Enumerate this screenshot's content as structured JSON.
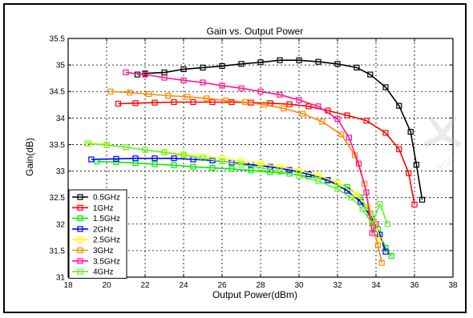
{
  "chart_data": {
    "type": "line",
    "title": "Gain vs. Output Power",
    "xlabel": "Output Power(dBm)",
    "ylabel": "Gain(dB)",
    "xlim": [
      18,
      38
    ],
    "ylim": [
      31,
      35.5
    ],
    "xticks": [
      "18",
      "20",
      "22",
      "24",
      "26",
      "28",
      "30",
      "32",
      "34",
      "36",
      "38"
    ],
    "yticks": [
      "31",
      "31.5",
      "32",
      "32.5",
      "33",
      "33.5",
      "34",
      "34.5",
      "35",
      "35.5"
    ],
    "grid": true,
    "grid_style": "dotted",
    "marker": "square",
    "legend_position": "lower-left",
    "series": [
      {
        "name": "0.5GHz",
        "color": "#000000",
        "x": [
          21.6,
          22.0,
          23.0,
          24.0,
          25.0,
          26.0,
          27.0,
          28.0,
          29.0,
          30.0,
          31.0,
          32.0,
          33.0,
          33.7,
          34.5,
          35.2,
          35.8,
          36.1,
          36.4
        ],
        "y": [
          34.82,
          34.84,
          34.86,
          34.92,
          34.95,
          34.98,
          35.02,
          35.05,
          35.09,
          35.09,
          35.06,
          35.02,
          34.95,
          34.82,
          34.58,
          34.23,
          33.74,
          33.12,
          32.46
        ]
      },
      {
        "name": "1GHz",
        "color": "#ff0000",
        "x": [
          20.6,
          21.5,
          22.5,
          23.5,
          24.5,
          25.5,
          26.5,
          27.5,
          28.5,
          29.5,
          30.5,
          31.5,
          32.5,
          33.5,
          34.5,
          35.2,
          35.7,
          36.0
        ],
        "y": [
          34.27,
          34.28,
          34.29,
          34.3,
          34.3,
          34.3,
          34.3,
          34.29,
          34.28,
          34.26,
          34.22,
          34.14,
          34.05,
          33.95,
          33.72,
          33.41,
          32.96,
          32.37
        ]
      },
      {
        "name": "1.5GHz",
        "color": "#00ee00",
        "x": [
          19.5,
          20.5,
          21.5,
          22.5,
          23.5,
          24.5,
          25.5,
          26.5,
          27.5,
          28.5,
          29.5,
          30.5,
          31.5,
          32.5,
          33.2,
          33.7,
          34.1,
          34.5,
          34.8
        ],
        "y": [
          33.18,
          33.17,
          33.15,
          33.13,
          33.11,
          33.08,
          33.06,
          33.04,
          33.01,
          32.98,
          32.95,
          32.9,
          32.82,
          32.7,
          32.5,
          32.2,
          31.9,
          31.55,
          31.4
        ]
      },
      {
        "name": "2GHz",
        "color": "#0000ff",
        "x": [
          19.2,
          20.5,
          21.5,
          22.5,
          23.5,
          24.5,
          25.5,
          26.5,
          27.5,
          28.5,
          29.5,
          30.5,
          31.5,
          32.5,
          33.2,
          33.8,
          34.2,
          34.5
        ],
        "y": [
          33.22,
          33.23,
          33.24,
          33.24,
          33.24,
          33.22,
          33.2,
          33.16,
          33.12,
          33.08,
          33.02,
          32.94,
          32.83,
          32.63,
          32.42,
          32.1,
          31.8,
          31.48
        ]
      },
      {
        "name": "2.5GHz",
        "color": "#ffff00",
        "x": [
          19.1,
          20.0,
          21.0,
          22.0,
          23.0,
          24.0,
          25.0,
          26.0,
          27.0,
          28.0,
          29.0,
          30.0,
          31.0,
          32.0,
          33.0,
          33.6,
          34.0,
          34.2
        ],
        "y": [
          33.52,
          33.5,
          33.45,
          33.4,
          33.36,
          33.32,
          33.28,
          33.24,
          33.19,
          33.14,
          33.08,
          33.01,
          32.92,
          32.78,
          32.56,
          32.32,
          32.0,
          31.7
        ]
      },
      {
        "name": "3GHz",
        "color": "#ff8800",
        "x": [
          20.2,
          21.2,
          22.2,
          23.2,
          24.2,
          25.2,
          26.2,
          27.2,
          28.2,
          29.2,
          30.2,
          31.2,
          32.2,
          32.9,
          33.4,
          33.8,
          34.1,
          34.3
        ],
        "y": [
          34.5,
          34.48,
          34.45,
          34.42,
          34.4,
          34.37,
          34.33,
          34.3,
          34.25,
          34.18,
          34.08,
          33.93,
          33.69,
          33.3,
          32.76,
          32.0,
          31.6,
          31.27
        ]
      },
      {
        "name": "3.5GHz",
        "color": "#ff1493",
        "x": [
          21.0,
          22.0,
          23.0,
          24.0,
          25.0,
          26.0,
          27.0,
          28.0,
          29.0,
          30.0,
          31.0,
          32.0,
          32.6,
          33.1,
          33.5,
          33.8,
          34.0
        ],
        "y": [
          34.86,
          34.82,
          34.76,
          34.71,
          34.67,
          34.61,
          34.56,
          34.5,
          34.44,
          34.34,
          34.22,
          33.98,
          33.63,
          33.14,
          32.6,
          31.83,
          32.0
        ]
      },
      {
        "name": "4GHz",
        "color": "#66ee33",
        "x": [
          19.0,
          20.0,
          21.0,
          22.0,
          23.0,
          24.0,
          25.0,
          26.0,
          27.0,
          28.0,
          29.0,
          30.0,
          31.0,
          32.0,
          32.7,
          33.3,
          33.8,
          34.2,
          34.6
        ],
        "y": [
          33.52,
          33.49,
          33.45,
          33.4,
          33.35,
          33.3,
          33.24,
          33.18,
          33.12,
          33.06,
          32.99,
          32.91,
          32.81,
          32.66,
          32.5,
          32.28,
          32.0,
          32.38,
          32.0
        ]
      }
    ]
  },
  "watermark": {
    "color": "#bbbbbb",
    "text": "AGD"
  }
}
